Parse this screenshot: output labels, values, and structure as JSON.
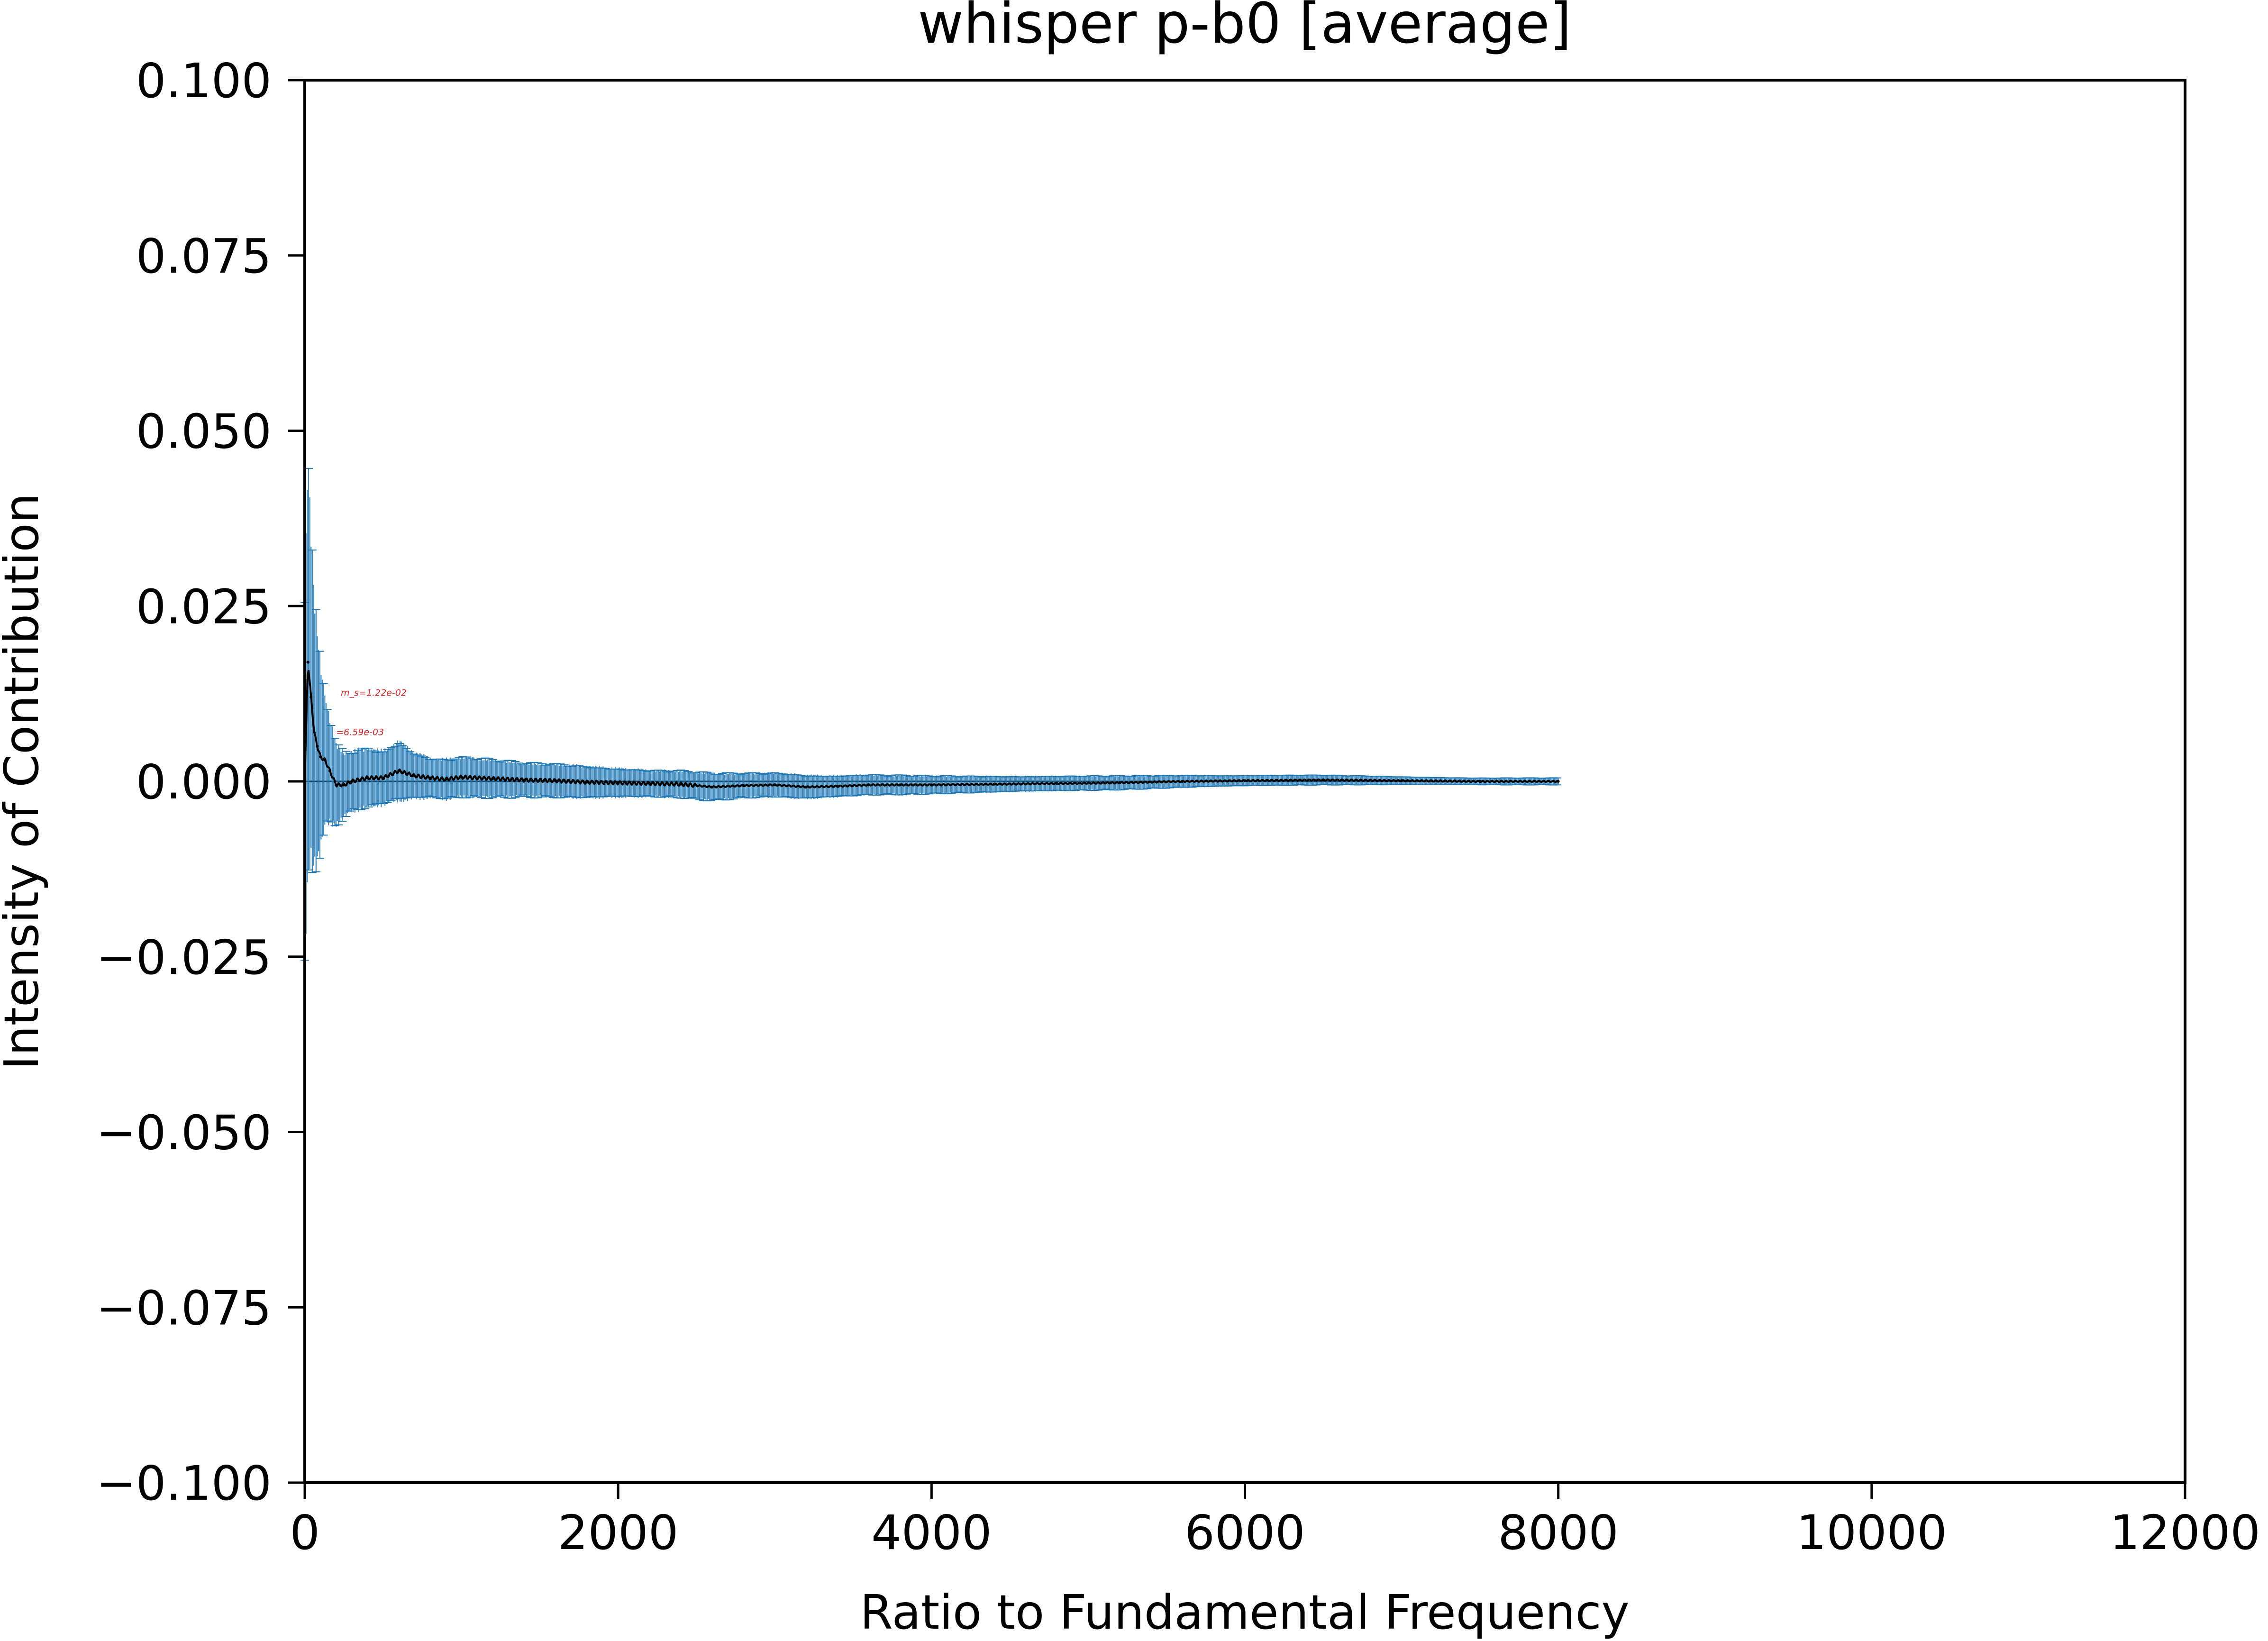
{
  "chart_data": {
    "type": "line",
    "title": "whisper p-b0 [average]",
    "xlabel": "Ratio to Fundamental Frequency",
    "ylabel": "Intensity of Contribution",
    "xlim": [
      0,
      12000
    ],
    "ylim": [
      -0.1,
      0.1
    ],
    "x_ticks": [
      0,
      2000,
      4000,
      6000,
      8000,
      10000,
      12000
    ],
    "x_tick_labels": [
      "0",
      "2000",
      "4000",
      "6000",
      "8000",
      "10000",
      "12000"
    ],
    "y_ticks": [
      0.1,
      0.075,
      0.05,
      0.025,
      0.0,
      -0.025,
      -0.05,
      -0.075,
      -0.1
    ],
    "y_tick_labels": [
      "0.100",
      "0.075",
      "0.050",
      "0.025",
      "0.000",
      "−0.025",
      "−0.050",
      "−0.075",
      "−0.100"
    ],
    "grid": false,
    "legend": "none",
    "reference_line_y": 0.0,
    "series": [
      {
        "style": "line with error bars",
        "line_color": "#000000",
        "errorbar_color": "#1f77b4",
        "x": [
          0,
          20,
          40,
          60,
          80,
          100,
          130,
          160,
          200,
          250,
          300,
          400,
          500,
          600,
          700,
          800,
          900,
          1000,
          1200,
          1400,
          1600,
          1800,
          2000,
          2200,
          2400,
          2600,
          2800,
          3000,
          3200,
          3400,
          3600,
          3800,
          4000,
          4400,
          4800,
          5200,
          5600,
          6000,
          6500,
          7000,
          7500,
          8000
        ],
        "y": [
          0.0,
          0.017,
          0.012,
          0.007,
          0.005,
          0.0035,
          0.003,
          0.0015,
          -0.0005,
          -0.0005,
          0.0,
          0.0005,
          0.0005,
          0.0015,
          0.0008,
          0.0005,
          0.0003,
          0.0006,
          0.0004,
          0.0002,
          0.0001,
          -0.0001,
          -0.0002,
          -0.0003,
          -0.0004,
          -0.0008,
          -0.0006,
          -0.0005,
          -0.0008,
          -0.0007,
          -0.0005,
          -0.0005,
          -0.0005,
          -0.0004,
          -0.0003,
          -0.0002,
          0.0,
          0.0001,
          0.0002,
          0.0001,
          0.0,
          0.0
        ],
        "err": [
          0.03,
          0.032,
          0.025,
          0.02,
          0.017,
          0.014,
          0.01,
          0.008,
          0.006,
          0.005,
          0.0045,
          0.0045,
          0.004,
          0.0045,
          0.0035,
          0.003,
          0.003,
          0.003,
          0.0028,
          0.0025,
          0.0025,
          0.0024,
          0.0022,
          0.002,
          0.002,
          0.002,
          0.0018,
          0.0018,
          0.0018,
          0.0016,
          0.0015,
          0.0014,
          0.0013,
          0.0012,
          0.0011,
          0.001,
          0.0009,
          0.0008,
          0.0007,
          0.0006,
          0.0005,
          0.0005
        ]
      }
    ],
    "annotations": [
      {
        "text": "m_s=1.22e-02",
        "x": 230,
        "y": 0.0122
      },
      {
        "text": "=6.59e-03",
        "x": 200,
        "y": 0.0066
      }
    ]
  }
}
